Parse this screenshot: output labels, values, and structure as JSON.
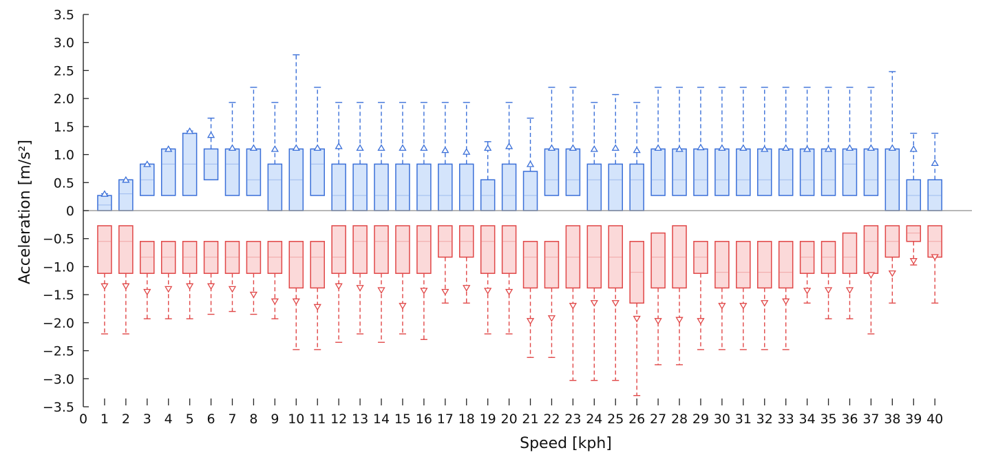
{
  "chart_data": {
    "type": "box",
    "xlabel": "Speed [kph]",
    "ylabel": "Acceleration [m/s²]",
    "xlim": [
      0,
      40.7
    ],
    "ylim": [
      -3.5,
      3.5
    ],
    "xticks": [
      0,
      1,
      2,
      3,
      4,
      5,
      6,
      7,
      8,
      9,
      10,
      11,
      12,
      13,
      14,
      15,
      16,
      17,
      18,
      19,
      20,
      21,
      22,
      23,
      24,
      25,
      26,
      27,
      28,
      29,
      30,
      31,
      32,
      33,
      34,
      35,
      36,
      37,
      38,
      39,
      40
    ],
    "yticks": [
      3.5,
      3.0,
      2.5,
      2.0,
      1.5,
      1.0,
      0.5,
      0,
      -0.5,
      -1.0,
      -1.5,
      -2.0,
      -2.5,
      -3.0,
      -3.5
    ],
    "ytick_labels": [
      "3.5",
      "3.0",
      "2.5",
      "2.0",
      "1.5",
      "1.0",
      "0.5",
      "0",
      "−0.5",
      "−1.0",
      "−1.5",
      "−2.0",
      "−2.5",
      "−3.0",
      "−3.5"
    ],
    "grid": false,
    "colors": {
      "positive_stroke": "#3a6fd8",
      "positive_fill": "#d4e4fb",
      "negative_stroke": "#e04646",
      "negative_fill": "#fbd9d9",
      "zero_line": "#8c8c8c"
    },
    "series": [
      {
        "boxes": [
          {
            "x": 1,
            "q1": 0,
            "median": 0.1,
            "q3": 0.27,
            "whisker": 0.3
          },
          {
            "x": 2,
            "q1": 0,
            "median": 0.3,
            "q3": 0.55,
            "whisker": 0.55
          },
          {
            "x": 3,
            "q1": 0.27,
            "median": 0.55,
            "q3": 0.83,
            "whisker": 0.83
          },
          {
            "x": 4,
            "q1": 0.27,
            "median": 0.83,
            "q3": 1.1,
            "whisker": 1.1
          },
          {
            "x": 5,
            "q1": 0.27,
            "median": 0.83,
            "q3": 1.38,
            "whisker": 1.42
          },
          {
            "x": 6,
            "q1": 0.55,
            "median": 0.83,
            "q3": 1.1,
            "whisker": 1.65,
            "marker": 1.35
          },
          {
            "x": 7,
            "q1": 0.27,
            "median": 0.83,
            "q3": 1.1,
            "whisker": 1.93,
            "marker": 1.12
          },
          {
            "x": 8,
            "q1": 0.27,
            "median": 0.55,
            "q3": 1.1,
            "whisker": 2.2,
            "marker": 1.12
          },
          {
            "x": 9,
            "q1": 0,
            "median": 0.55,
            "q3": 0.83,
            "whisker": 1.93,
            "marker": 1.1
          },
          {
            "x": 10,
            "q1": 0,
            "median": 0.55,
            "q3": 1.1,
            "whisker": 2.78,
            "marker": 1.12
          },
          {
            "x": 11,
            "q1": 0.27,
            "median": 0.83,
            "q3": 1.1,
            "whisker": 2.2,
            "marker": 1.12
          },
          {
            "x": 12,
            "q1": 0,
            "median": 0.27,
            "q3": 0.83,
            "whisker": 1.93,
            "marker": 1.15
          },
          {
            "x": 13,
            "q1": 0,
            "median": 0.27,
            "q3": 0.83,
            "whisker": 1.93,
            "marker": 1.12
          },
          {
            "x": 14,
            "q1": 0,
            "median": 0.27,
            "q3": 0.83,
            "whisker": 1.93,
            "marker": 1.12
          },
          {
            "x": 15,
            "q1": 0,
            "median": 0.27,
            "q3": 0.83,
            "whisker": 1.93,
            "marker": 1.12
          },
          {
            "x": 16,
            "q1": 0,
            "median": 0.27,
            "q3": 0.83,
            "whisker": 1.93,
            "marker": 1.12
          },
          {
            "x": 17,
            "q1": 0,
            "median": 0.27,
            "q3": 0.83,
            "whisker": 1.93,
            "marker": 1.08
          },
          {
            "x": 18,
            "q1": 0,
            "median": 0.27,
            "q3": 0.83,
            "whisker": 1.93,
            "marker": 1.05
          },
          {
            "x": 19,
            "q1": 0,
            "median": 0.27,
            "q3": 0.55,
            "whisker": 1.23,
            "marker": 1.12
          },
          {
            "x": 20,
            "q1": 0,
            "median": 0.27,
            "q3": 0.83,
            "whisker": 1.93,
            "marker": 1.15
          },
          {
            "x": 21,
            "q1": 0,
            "median": 0.27,
            "q3": 0.7,
            "whisker": 1.65,
            "marker": 0.83
          },
          {
            "x": 22,
            "q1": 0.27,
            "median": 0.55,
            "q3": 1.1,
            "whisker": 2.2,
            "marker": 1.12
          },
          {
            "x": 23,
            "q1": 0.27,
            "median": 0.55,
            "q3": 1.1,
            "whisker": 2.2,
            "marker": 1.12
          },
          {
            "x": 24,
            "q1": 0,
            "median": 0.55,
            "q3": 0.83,
            "whisker": 1.93,
            "marker": 1.1
          },
          {
            "x": 25,
            "q1": 0,
            "median": 0.55,
            "q3": 0.83,
            "whisker": 2.07,
            "marker": 1.12
          },
          {
            "x": 26,
            "q1": 0,
            "median": 0.55,
            "q3": 0.83,
            "whisker": 1.93,
            "marker": 1.08
          },
          {
            "x": 27,
            "q1": 0.27,
            "median": 0.55,
            "q3": 1.1,
            "whisker": 2.2,
            "marker": 1.12
          },
          {
            "x": 28,
            "q1": 0.27,
            "median": 0.55,
            "q3": 1.1,
            "whisker": 2.2,
            "marker": 1.1
          },
          {
            "x": 29,
            "q1": 0.27,
            "median": 0.55,
            "q3": 1.1,
            "whisker": 2.2,
            "marker": 1.13
          },
          {
            "x": 30,
            "q1": 0.27,
            "median": 0.55,
            "q3": 1.1,
            "whisker": 2.2,
            "marker": 1.12
          },
          {
            "x": 31,
            "q1": 0.27,
            "median": 0.55,
            "q3": 1.1,
            "whisker": 2.2,
            "marker": 1.12
          },
          {
            "x": 32,
            "q1": 0.27,
            "median": 0.55,
            "q3": 1.1,
            "whisker": 2.2,
            "marker": 1.1
          },
          {
            "x": 33,
            "q1": 0.27,
            "median": 0.55,
            "q3": 1.1,
            "whisker": 2.2,
            "marker": 1.12
          },
          {
            "x": 34,
            "q1": 0.27,
            "median": 0.55,
            "q3": 1.1,
            "whisker": 2.2,
            "marker": 1.1
          },
          {
            "x": 35,
            "q1": 0.27,
            "median": 0.55,
            "q3": 1.1,
            "whisker": 2.2,
            "marker": 1.1
          },
          {
            "x": 36,
            "q1": 0.27,
            "median": 0.83,
            "q3": 1.1,
            "whisker": 2.2,
            "marker": 1.12
          },
          {
            "x": 37,
            "q1": 0.27,
            "median": 0.55,
            "q3": 1.1,
            "whisker": 2.2,
            "marker": 1.12
          },
          {
            "x": 38,
            "q1": 0,
            "median": 0.55,
            "q3": 1.1,
            "whisker": 2.48,
            "marker": 1.12
          },
          {
            "x": 39,
            "q1": 0,
            "median": 0.27,
            "q3": 0.55,
            "whisker": 1.38,
            "marker": 1.1
          },
          {
            "x": 40,
            "q1": 0,
            "median": 0.27,
            "q3": 0.55,
            "whisker": 1.38,
            "marker": 0.85
          }
        ]
      },
      {
        "boxes": [
          {
            "x": 1,
            "q1": -1.12,
            "median": -0.55,
            "q3": -0.27,
            "whisker": -2.2,
            "marker": -1.35
          },
          {
            "x": 2,
            "q1": -1.12,
            "median": -0.55,
            "q3": -0.27,
            "whisker": -2.2,
            "marker": -1.35
          },
          {
            "x": 3,
            "q1": -1.12,
            "median": -0.83,
            "q3": -0.55,
            "whisker": -1.93,
            "marker": -1.45
          },
          {
            "x": 4,
            "q1": -1.12,
            "median": -0.83,
            "q3": -0.55,
            "whisker": -1.93,
            "marker": -1.4
          },
          {
            "x": 5,
            "q1": -1.12,
            "median": -0.83,
            "q3": -0.55,
            "whisker": -1.93,
            "marker": -1.35
          },
          {
            "x": 6,
            "q1": -1.12,
            "median": -0.83,
            "q3": -0.55,
            "whisker": -1.85,
            "marker": -1.35
          },
          {
            "x": 7,
            "q1": -1.12,
            "median": -0.83,
            "q3": -0.55,
            "whisker": -1.8,
            "marker": -1.4
          },
          {
            "x": 8,
            "q1": -1.12,
            "median": -0.83,
            "q3": -0.55,
            "whisker": -1.85,
            "marker": -1.5
          },
          {
            "x": 9,
            "q1": -1.12,
            "median": -0.83,
            "q3": -0.55,
            "whisker": -1.93,
            "marker": -1.62
          },
          {
            "x": 10,
            "q1": -1.38,
            "median": -0.83,
            "q3": -0.55,
            "whisker": -2.48,
            "marker": -1.62
          },
          {
            "x": 11,
            "q1": -1.38,
            "median": -0.83,
            "q3": -0.55,
            "whisker": -2.48,
            "marker": -1.72
          },
          {
            "x": 12,
            "q1": -1.12,
            "median": -0.83,
            "q3": -0.27,
            "whisker": -2.35,
            "marker": -1.35
          },
          {
            "x": 13,
            "q1": -1.12,
            "median": -0.55,
            "q3": -0.27,
            "whisker": -2.2,
            "marker": -1.38
          },
          {
            "x": 14,
            "q1": -1.12,
            "median": -0.55,
            "q3": -0.27,
            "whisker": -2.35,
            "marker": -1.42
          },
          {
            "x": 15,
            "q1": -1.12,
            "median": -0.55,
            "q3": -0.27,
            "whisker": -2.2,
            "marker": -1.7
          },
          {
            "x": 16,
            "q1": -1.12,
            "median": -0.55,
            "q3": -0.27,
            "whisker": -2.3,
            "marker": -1.43
          },
          {
            "x": 17,
            "q1": -0.83,
            "median": -0.55,
            "q3": -0.27,
            "whisker": -1.65,
            "marker": -1.45
          },
          {
            "x": 18,
            "q1": -0.83,
            "median": -0.55,
            "q3": -0.27,
            "whisker": -1.65,
            "marker": -1.38
          },
          {
            "x": 19,
            "q1": -1.12,
            "median": -0.55,
            "q3": -0.27,
            "whisker": -2.2,
            "marker": -1.43
          },
          {
            "x": 20,
            "q1": -1.12,
            "median": -0.55,
            "q3": -0.27,
            "whisker": -2.2,
            "marker": -1.45
          },
          {
            "x": 21,
            "q1": -1.38,
            "median": -0.83,
            "q3": -0.55,
            "whisker": -2.62,
            "marker": -1.97
          },
          {
            "x": 22,
            "q1": -1.38,
            "median": -0.83,
            "q3": -0.55,
            "whisker": -2.62,
            "marker": -1.92
          },
          {
            "x": 23,
            "q1": -1.38,
            "median": -0.83,
            "q3": -0.27,
            "whisker": -3.03,
            "marker": -1.7
          },
          {
            "x": 24,
            "q1": -1.38,
            "median": -0.83,
            "q3": -0.27,
            "whisker": -3.03,
            "marker": -1.65
          },
          {
            "x": 25,
            "q1": -1.38,
            "median": -0.83,
            "q3": -0.27,
            "whisker": -3.03,
            "marker": -1.65
          },
          {
            "x": 26,
            "q1": -1.65,
            "median": -1.1,
            "q3": -0.55,
            "whisker": -3.3,
            "marker": -1.93
          },
          {
            "x": 27,
            "q1": -1.38,
            "median": -0.83,
            "q3": -0.4,
            "whisker": -2.75,
            "marker": -1.97
          },
          {
            "x": 28,
            "q1": -1.38,
            "median": -0.83,
            "q3": -0.27,
            "whisker": -2.75,
            "marker": -1.95
          },
          {
            "x": 29,
            "q1": -1.12,
            "median": -0.83,
            "q3": -0.55,
            "whisker": -2.48,
            "marker": -1.97
          },
          {
            "x": 30,
            "q1": -1.38,
            "median": -1.1,
            "q3": -0.55,
            "whisker": -2.48,
            "marker": -1.7
          },
          {
            "x": 31,
            "q1": -1.38,
            "median": -1.1,
            "q3": -0.55,
            "whisker": -2.48,
            "marker": -1.7
          },
          {
            "x": 32,
            "q1": -1.38,
            "median": -1.1,
            "q3": -0.55,
            "whisker": -2.48,
            "marker": -1.65
          },
          {
            "x": 33,
            "q1": -1.38,
            "median": -1.1,
            "q3": -0.55,
            "whisker": -2.48,
            "marker": -1.62
          },
          {
            "x": 34,
            "q1": -1.12,
            "median": -0.83,
            "q3": -0.55,
            "whisker": -1.65,
            "marker": -1.43
          },
          {
            "x": 35,
            "q1": -1.12,
            "median": -0.83,
            "q3": -0.55,
            "whisker": -1.93,
            "marker": -1.42
          },
          {
            "x": 36,
            "q1": -1.12,
            "median": -0.83,
            "q3": -0.4,
            "whisker": -1.93,
            "marker": -1.42
          },
          {
            "x": 37,
            "q1": -1.12,
            "median": -0.55,
            "q3": -0.27,
            "whisker": -2.2,
            "marker": -1.15
          },
          {
            "x": 38,
            "q1": -0.83,
            "median": -0.55,
            "q3": -0.27,
            "whisker": -1.65,
            "marker": -1.12
          },
          {
            "x": 39,
            "q1": -0.55,
            "median": -0.4,
            "q3": -0.27,
            "whisker": -0.97,
            "marker": -0.9
          },
          {
            "x": 40,
            "q1": -0.83,
            "median": -0.55,
            "q3": -0.27,
            "whisker": -1.65,
            "marker": -0.83
          }
        ]
      }
    ]
  }
}
